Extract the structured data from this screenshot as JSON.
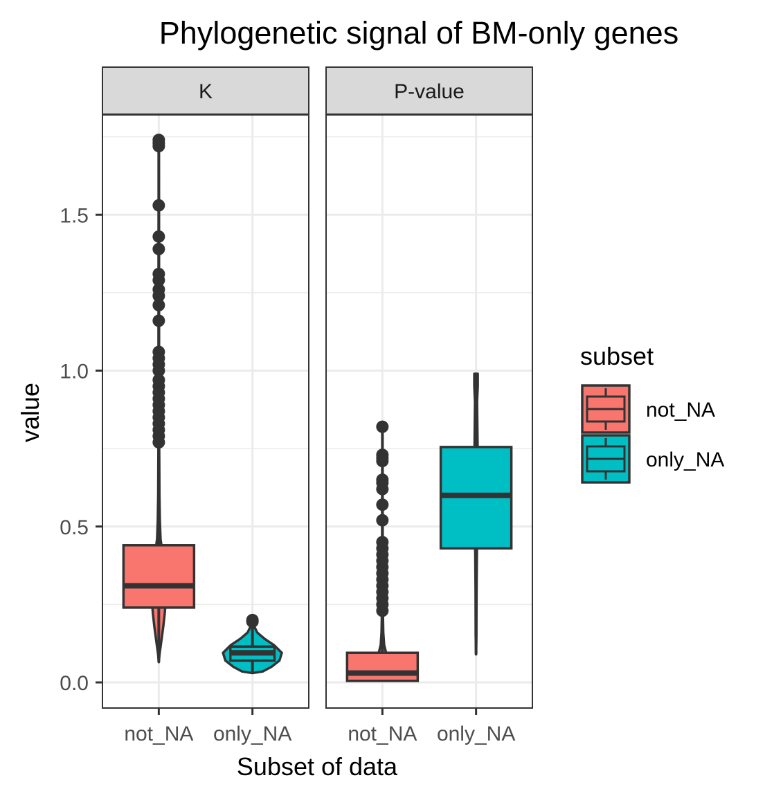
{
  "chart_data": {
    "type": "violin+boxplot (faceted)",
    "title": "Phylogenetic signal of BM-only genes",
    "xlabel": "Subset of data",
    "ylabel": "value",
    "ylim": [
      -0.08,
      1.82
    ],
    "y_ticks": [
      "0.0",
      "0.5",
      "1.0",
      "1.5"
    ],
    "y_tick_values": [
      0.0,
      0.5,
      1.0,
      1.5
    ],
    "grid": true,
    "legend": {
      "title": "subset",
      "position": "right",
      "entries": [
        {
          "label": "not_NA",
          "color": "#F8766D"
        },
        {
          "label": "only_NA",
          "color": "#00BFC4"
        }
      ]
    },
    "colors": {
      "not_NA": "#F8766D",
      "only_NA": "#00BFC4",
      "line": "#333333",
      "strip": "#d9d9d9",
      "grid": "#ebebeb"
    },
    "facets": [
      {
        "strip": "K",
        "categories": [
          "not_NA",
          "only_NA"
        ],
        "groups": [
          {
            "category": "not_NA",
            "box": {
              "q1": 0.24,
              "median": 0.31,
              "q3": 0.44
            },
            "violin": [
              [
                0.065,
                0.0
              ],
              [
                0.09,
                0.02
              ],
              [
                0.13,
                0.07
              ],
              [
                0.18,
                0.13
              ],
              [
                0.22,
                0.17
              ],
              [
                0.26,
                0.2
              ],
              [
                0.3,
                0.21
              ],
              [
                0.34,
                0.2
              ],
              [
                0.38,
                0.16
              ],
              [
                0.42,
                0.1
              ],
              [
                0.46,
                0.05
              ],
              [
                0.52,
                0.03
              ],
              [
                0.6,
                0.018
              ],
              [
                0.7,
                0.014
              ],
              [
                0.78,
                0.01
              ],
              [
                1.0,
                0.008
              ],
              [
                1.4,
                0.006
              ],
              [
                1.74,
                0.0
              ]
            ],
            "outliers": [
              0.77,
              0.79,
              0.81,
              0.83,
              0.85,
              0.87,
              0.89,
              0.91,
              0.93,
              0.95,
              0.97,
              1.0,
              1.02,
              1.04,
              1.06,
              1.16,
              1.21,
              1.24,
              1.26,
              1.29,
              1.31,
              1.39,
              1.43,
              1.53,
              1.72,
              1.73,
              1.74
            ]
          },
          {
            "category": "only_NA",
            "box": {
              "q1": 0.07,
              "median": 0.095,
              "q3": 0.115
            },
            "violin": [
              [
                0.03,
                0.0
              ],
              [
                0.035,
                0.3
              ],
              [
                0.05,
                0.55
              ],
              [
                0.07,
                0.78
              ],
              [
                0.095,
                0.85
              ],
              [
                0.12,
                0.62
              ],
              [
                0.14,
                0.35
              ],
              [
                0.16,
                0.14
              ],
              [
                0.18,
                0.05
              ],
              [
                0.2,
                0.0
              ]
            ],
            "outliers": [
              0.195,
              0.2
            ]
          }
        ]
      },
      {
        "strip": "P-value",
        "categories": [
          "not_NA",
          "only_NA"
        ],
        "groups": [
          {
            "category": "not_NA",
            "box": {
              "q1": 0.005,
              "median": 0.03,
              "q3": 0.095
            },
            "violin": [
              [
                0.005,
                0.0
              ],
              [
                0.008,
                0.85
              ],
              [
                0.015,
                0.8
              ],
              [
                0.03,
                0.45
              ],
              [
                0.05,
                0.28
              ],
              [
                0.08,
                0.14
              ],
              [
                0.12,
                0.05
              ],
              [
                0.16,
                0.025
              ],
              [
                0.22,
                0.015
              ],
              [
                0.4,
                0.008
              ],
              [
                0.6,
                0.006
              ],
              [
                0.82,
                0.0
              ]
            ],
            "outliers": [
              0.23,
              0.25,
              0.27,
              0.29,
              0.31,
              0.33,
              0.35,
              0.37,
              0.39,
              0.41,
              0.43,
              0.45,
              0.52,
              0.57,
              0.62,
              0.64,
              0.65,
              0.71,
              0.72,
              0.73,
              0.82
            ]
          },
          {
            "category": "only_NA",
            "box": {
              "q1": 0.43,
              "median": 0.6,
              "q3": 0.755
            },
            "violin": [
              [
                0.09,
                0.0
              ],
              [
                0.15,
                0.01
              ],
              [
                0.3,
                0.015
              ],
              [
                0.43,
                0.025
              ],
              [
                0.6,
                0.04
              ],
              [
                0.75,
                0.045
              ],
              [
                0.9,
                0.03
              ],
              [
                0.95,
                0.05
              ],
              [
                0.99,
                0.05
              ]
            ],
            "outliers": []
          }
        ]
      }
    ]
  }
}
